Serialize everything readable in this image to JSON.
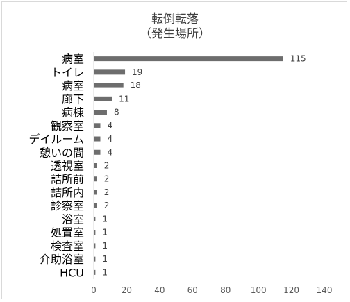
{
  "chart_data": {
    "type": "bar",
    "orientation": "horizontal",
    "title": "転倒転落",
    "subtitle": "（発生場所）",
    "categories": [
      "病室",
      "トイレ",
      "病室",
      "廊下",
      "病棟",
      "観察室",
      "デイルーム",
      "憩いの間",
      "透視室",
      "詰所前",
      "詰所内",
      "診察室",
      "浴室",
      "処置室",
      "検査室",
      "介助浴室",
      "HCU"
    ],
    "values": [
      115,
      19,
      18,
      11,
      8,
      4,
      4,
      4,
      2,
      2,
      2,
      2,
      1,
      1,
      1,
      1,
      1
    ],
    "data_labels": [
      "115",
      "19",
      "18",
      "11",
      "8",
      "4",
      "4",
      "4",
      "2",
      "2",
      "2",
      "2",
      "1",
      "1",
      "1",
      "1",
      "1"
    ],
    "x_ticks": [
      "0",
      "20",
      "40",
      "60",
      "80",
      "100",
      "120",
      "140"
    ],
    "xlim": [
      0,
      140
    ],
    "grid": false,
    "legend": "none",
    "bar_color": "#6d6d6d"
  }
}
